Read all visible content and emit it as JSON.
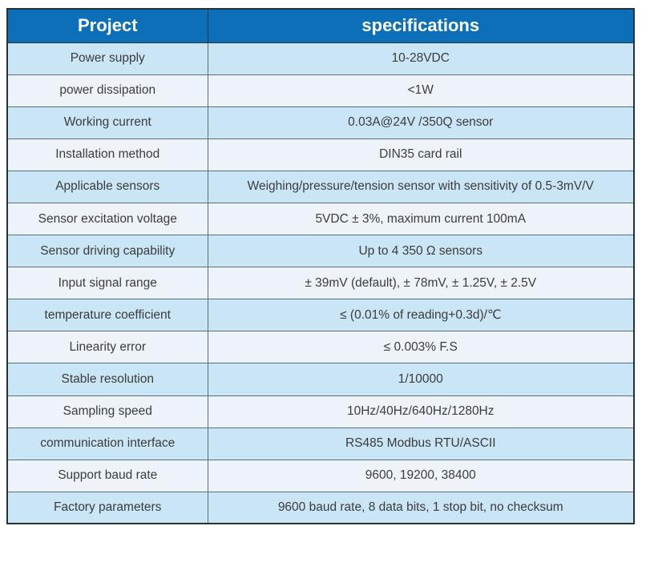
{
  "theme": {
    "header_bg": "#0d6fb8",
    "header_text": "#ffffff",
    "row_odd_bg": "#c9e5f6",
    "row_even_bg": "#eef3fa",
    "cell_text": "#3c3c3c",
    "grid_line": "#55707c",
    "outer_line": "#22333c",
    "page_bg": "#ffffff"
  },
  "table": {
    "columns": [
      {
        "label": "Project"
      },
      {
        "label": "specifications"
      }
    ],
    "rows": [
      {
        "parameter": "Power supply",
        "value": "10-28VDC"
      },
      {
        "parameter": "power dissipation",
        "value": "<1W"
      },
      {
        "parameter": "Working current",
        "value": "0.03A@24V /350Q sensor"
      },
      {
        "parameter": "Installation method",
        "value": "DIN35 card rail"
      },
      {
        "parameter": "Applicable sensors",
        "value": "Weighing/pressure/tension sensor with sensitivity of 0.5-3mV/V"
      },
      {
        "parameter": "Sensor excitation voltage",
        "value": "5VDC ± 3%, maximum current 100mA"
      },
      {
        "parameter": "Sensor driving capability",
        "value": "Up to 4 350 Ω sensors"
      },
      {
        "parameter": "Input signal range",
        "value": "± 39mV (default), ± 78mV, ± 1.25V, ± 2.5V"
      },
      {
        "parameter": "temperature coefficient",
        "value": "≤ (0.01% of reading+0.3d)/℃"
      },
      {
        "parameter": "Linearity error",
        "value": "≤ 0.003% F.S"
      },
      {
        "parameter": "Stable resolution",
        "value": "1/10000"
      },
      {
        "parameter": "Sampling speed",
        "value": "10Hz/40Hz/640Hz/1280Hz"
      },
      {
        "parameter": "communication interface",
        "value": "RS485 Modbus RTU/ASCII"
      },
      {
        "parameter": "Support baud rate",
        "value": "9600, 19200, 38400"
      },
      {
        "parameter": "Factory parameters",
        "value": "9600 baud rate, 8 data bits, 1 stop bit, no checksum"
      }
    ]
  }
}
